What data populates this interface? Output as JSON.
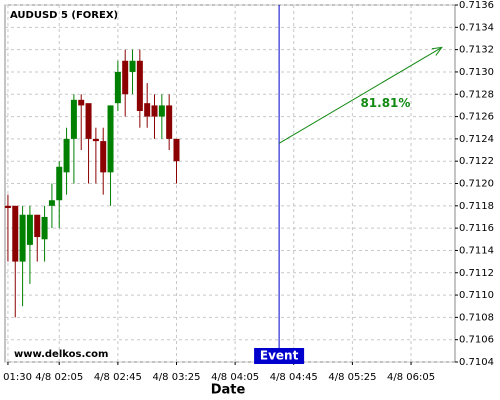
{
  "chart_data": {
    "type": "candlestick",
    "title": "AUDUSD 5 (FOREX)",
    "watermark": "www.delkos.com",
    "x_label": "Date",
    "x": [
      "4/8 01:30",
      "4/8 01:35",
      "4/8 01:40",
      "4/8 01:45",
      "4/8 01:50",
      "4/8 01:55",
      "4/8 02:00",
      "4/8 02:05",
      "4/8 02:10",
      "4/8 02:15",
      "4/8 02:20",
      "4/8 02:25",
      "4/8 02:30",
      "4/8 02:35",
      "4/8 02:40",
      "4/8 02:45",
      "4/8 02:50",
      "4/8 02:55",
      "4/8 03:00",
      "4/8 03:05",
      "4/8 03:10",
      "4/8 03:15",
      "4/8 03:20",
      "4/8 03:25"
    ],
    "open": [
      0.7118,
      0.7118,
      0.7113,
      0.71145,
      0.71172,
      0.7115,
      0.7118,
      0.71185,
      0.7121,
      0.7124,
      0.71275,
      0.71272,
      0.7124,
      0.71238,
      0.7121,
      0.71272,
      0.7131,
      0.713,
      0.7131,
      0.71272,
      0.7127,
      0.7126,
      0.7127,
      0.7124
    ],
    "high": [
      0.7119,
      0.7118,
      0.7118,
      0.7118,
      0.7117,
      0.7118,
      0.712,
      0.7122,
      0.7125,
      0.7128,
      0.7128,
      0.7127,
      0.7125,
      0.7125,
      0.7127,
      0.7131,
      0.7132,
      0.7132,
      0.7132,
      0.7129,
      0.7128,
      0.7128,
      0.7128,
      0.7124
    ],
    "low": [
      0.7113,
      0.7108,
      0.7109,
      0.7111,
      0.7113,
      0.7113,
      0.7116,
      0.7116,
      0.7119,
      0.712,
      0.7123,
      0.712,
      0.712,
      0.7119,
      0.7118,
      0.71265,
      0.7126,
      0.7128,
      0.7125,
      0.7125,
      0.7124,
      0.7124,
      0.7123,
      0.712
    ],
    "close": [
      0.71178,
      0.7113,
      0.71172,
      0.71172,
      0.71152,
      0.7117,
      0.71185,
      0.71215,
      0.7124,
      0.71275,
      0.7127,
      0.7124,
      0.71238,
      0.7121,
      0.7127,
      0.713,
      0.7128,
      0.7131,
      0.71265,
      0.7126,
      0.7126,
      0.7127,
      0.7124,
      0.7122
    ],
    "up_color": "#008000",
    "down_color": "#8b0000",
    "xlim": [
      "4/8 01:28",
      "4/8 06:35"
    ],
    "xticks": [
      "4/8 01:30",
      "4/8 02:05",
      "4/8 02:45",
      "4/8 03:25",
      "4/8 04:05",
      "4/8 04:45",
      "4/8 05:25",
      "4/8 06:05"
    ],
    "ylim": [
      0.7104,
      0.7136
    ],
    "yticks": [
      0.7104,
      0.7106,
      0.7108,
      {
        "value": 0.711,
        "label": "0.7110"
      },
      0.7112,
      0.7114,
      0.7116,
      0.7118,
      {
        "value": 0.712,
        "label": "0.7120"
      },
      0.7122,
      0.7124,
      0.7126,
      0.7128,
      {
        "value": 0.713,
        "label": "0.7130"
      },
      0.7132,
      0.7134,
      0.7136
    ],
    "grid": true,
    "event": {
      "x": "4/8 04:35",
      "label": "Event",
      "color": "#0000cc"
    },
    "arrow": {
      "x": [
        "4/8 04:35",
        "4/8 06:26"
      ],
      "y": [
        0.71236,
        0.71322
      ],
      "label": "81.81%",
      "color": "#138a13"
    }
  }
}
